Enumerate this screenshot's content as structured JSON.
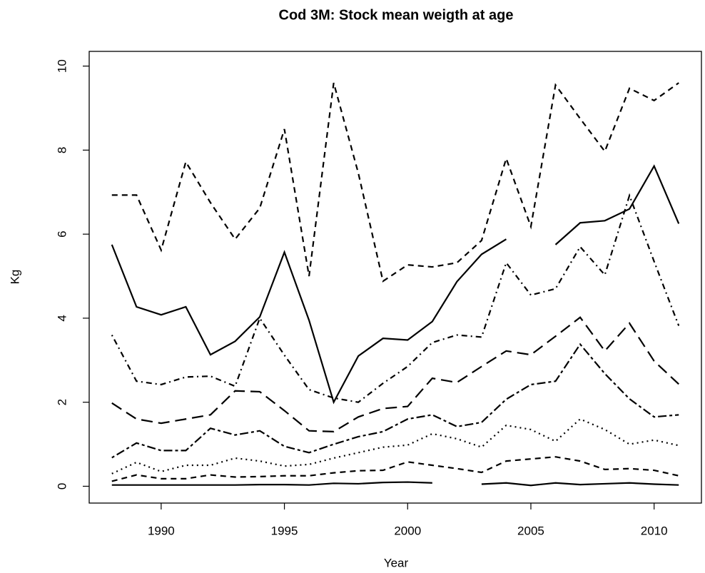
{
  "chart_data": {
    "type": "line",
    "title": "Cod 3M: Stock mean weigth at age",
    "x_label": "Year",
    "y_label": "Kg",
    "x": [
      1988,
      1989,
      1990,
      1991,
      1992,
      1993,
      1994,
      1995,
      1996,
      1997,
      1998,
      1999,
      2000,
      2001,
      2002,
      2003,
      2004,
      2005,
      2006,
      2007,
      2008,
      2009,
      2010,
      2011
    ],
    "xlim": [
      1987.08,
      2011.92
    ],
    "xticks": [
      1990,
      1995,
      2000,
      2005,
      2010
    ],
    "ylim": [
      -0.4,
      10.35
    ],
    "yticks": [
      0,
      2,
      4,
      6,
      8,
      10
    ],
    "grid": false,
    "series": [
      {
        "color": "#000000",
        "linestyle": "dashed",
        "values": [
          6.93,
          6.93,
          5.62,
          7.72,
          6.75,
          5.88,
          6.62,
          8.5,
          5.0,
          9.6,
          7.45,
          4.88,
          5.27,
          5.22,
          5.32,
          5.85,
          7.8,
          6.18,
          9.55,
          8.75,
          7.97,
          9.47,
          9.18,
          9.6
        ]
      },
      {
        "color": "#000000",
        "linestyle": "solid",
        "values": [
          5.75,
          4.27,
          4.08,
          4.27,
          3.13,
          3.45,
          4.03,
          5.57,
          3.95,
          2.0,
          3.1,
          3.52,
          3.48,
          3.92,
          4.87,
          5.52,
          5.88,
          null,
          5.75,
          6.27,
          6.32,
          6.6,
          7.62,
          6.25
        ]
      },
      {
        "color": "#000000",
        "linestyle": "dotdash",
        "values": [
          3.6,
          2.5,
          2.42,
          2.6,
          2.62,
          2.38,
          4.0,
          3.12,
          2.3,
          2.1,
          2.0,
          2.45,
          2.85,
          3.42,
          3.6,
          3.55,
          5.32,
          4.55,
          4.7,
          5.7,
          5.03,
          6.92,
          5.35,
          3.82
        ]
      },
      {
        "color": "#000000",
        "linestyle": "longdash",
        "values": [
          1.98,
          1.6,
          1.5,
          1.6,
          1.7,
          2.27,
          2.25,
          1.8,
          1.32,
          1.3,
          1.65,
          1.85,
          1.9,
          2.57,
          2.47,
          2.85,
          3.22,
          3.13,
          3.57,
          4.02,
          3.22,
          3.88,
          2.98,
          2.43
        ]
      },
      {
        "color": "#000000",
        "linestyle": "twodash",
        "values": [
          0.68,
          1.03,
          0.85,
          0.85,
          1.38,
          1.22,
          1.32,
          0.95,
          0.8,
          1.0,
          1.18,
          1.3,
          1.6,
          1.7,
          1.42,
          1.52,
          2.07,
          2.42,
          2.5,
          3.38,
          2.68,
          2.08,
          1.65,
          1.7
        ]
      },
      {
        "color": "#000000",
        "linestyle": "dotted",
        "values": [
          0.3,
          0.57,
          0.35,
          0.5,
          0.5,
          0.67,
          0.6,
          0.48,
          0.52,
          0.67,
          0.8,
          0.93,
          0.98,
          1.25,
          1.13,
          0.93,
          1.45,
          1.35,
          1.07,
          1.6,
          1.35,
          1.0,
          1.1,
          0.97
        ]
      },
      {
        "color": "#000000",
        "linestyle": "dashed",
        "values": [
          0.12,
          0.27,
          0.18,
          0.18,
          0.27,
          0.22,
          0.23,
          0.25,
          0.25,
          0.32,
          0.37,
          0.38,
          0.58,
          0.5,
          0.42,
          0.33,
          0.6,
          0.65,
          0.7,
          0.6,
          0.4,
          0.42,
          0.38,
          0.25
        ]
      },
      {
        "color": "#000000",
        "linestyle": "solid",
        "values": [
          0.03,
          0.03,
          0.03,
          0.03,
          0.03,
          0.03,
          0.04,
          0.04,
          0.03,
          0.07,
          0.06,
          0.09,
          0.1,
          0.08,
          null,
          0.05,
          0.08,
          0.02,
          0.08,
          0.04,
          0.06,
          0.08,
          0.05,
          0.03
        ]
      }
    ]
  }
}
